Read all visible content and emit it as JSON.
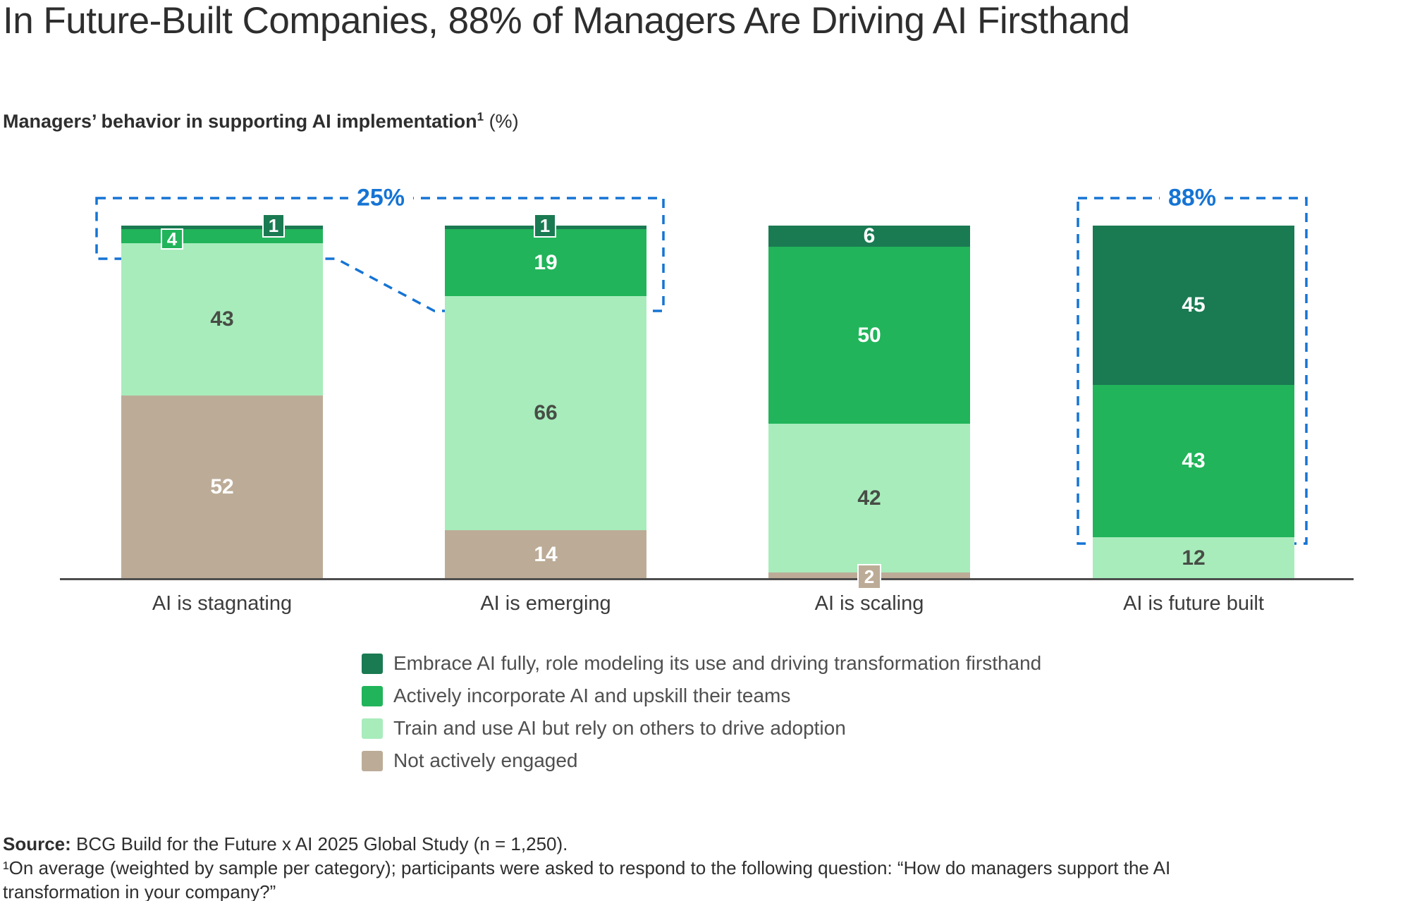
{
  "title": "In Future-Built Companies, 88% of Managers Are Driving AI Firsthand",
  "subtitle": {
    "bold": "Managers’ behavior in supporting AI implementation",
    "sup": "1",
    "suffix": " (%)"
  },
  "colors": {
    "accent_blue": "#1574d4",
    "dark_green": "#1a7a52",
    "medium_green": "#21b45a",
    "light_green": "#a8ecbc",
    "tan": "#bcac97",
    "axis": "#4d4d4d"
  },
  "chart_data": {
    "type": "bar",
    "stacked": true,
    "unit": "%",
    "categories": [
      "AI is stagnating",
      "AI is emerging",
      "AI is scaling",
      "AI is future built"
    ],
    "series": [
      {
        "name": "Embrace AI fully, role modeling its use and driving transformation firsthand",
        "color": "#1a7a52",
        "values": [
          1,
          1,
          6,
          45
        ]
      },
      {
        "name": "Actively incorporate AI and upskill their teams",
        "color": "#21b45a",
        "values": [
          4,
          19,
          50,
          43
        ]
      },
      {
        "name": "Train and use AI but rely on others to drive adoption",
        "color": "#a8ecbc",
        "values": [
          43,
          66,
          42,
          12
        ]
      },
      {
        "name": "Not actively engaged",
        "color": "#bcac97",
        "values": [
          52,
          14,
          2,
          0
        ]
      }
    ],
    "ylim": [
      0,
      100
    ],
    "legend_position": "bottom-center",
    "annotations": [
      {
        "label": "25%",
        "color": "#1574d4",
        "refers_to": "AI is stagnating + AI is emerging top segments"
      },
      {
        "label": "88%",
        "color": "#1574d4",
        "refers_to": "AI is future built: 45 + 43"
      }
    ]
  },
  "source": {
    "label": "Source:",
    "text": " BCG Build for the Future x AI 2025 Global Study (n = 1,250)."
  },
  "footnote": {
    "line1": "¹On average (weighted by sample per category); participants were asked to respond to the following question: “How do managers support the AI",
    "line2": "transformation in your company?”"
  }
}
